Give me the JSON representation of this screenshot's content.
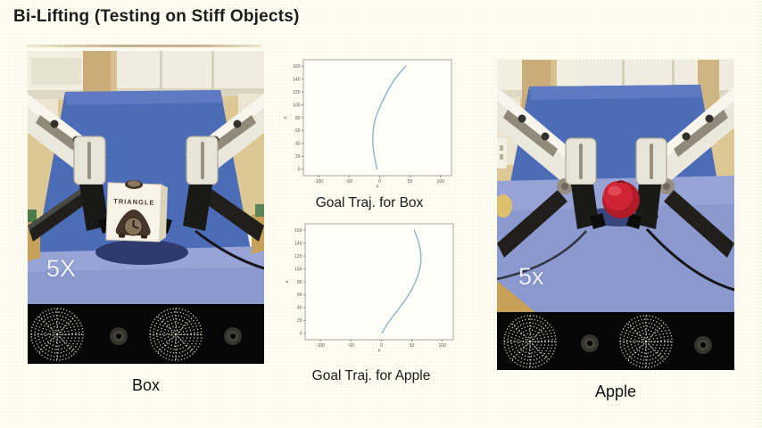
{
  "title": "Bi-Lifting (Testing on Stiff Objects)",
  "left_panel": {
    "speed_label": "5X",
    "object_label": "TRIANGLE",
    "caption": "Box"
  },
  "right_panel": {
    "speed_label": "5x",
    "caption": "Apple"
  },
  "chart_data": [
    {
      "type": "line",
      "title": "Goal Traj. for Box",
      "xlabel": "x",
      "ylabel": "z",
      "xlim": [
        -125,
        118
      ],
      "ylim": [
        -10,
        170
      ],
      "xticks": [
        -100,
        -50,
        0,
        50,
        100
      ],
      "yticks": [
        0,
        20,
        40,
        60,
        80,
        100,
        120,
        140,
        160
      ],
      "grid": false,
      "legend": "none",
      "line_color": "#86b6c9",
      "x": [
        -4,
        -6.5,
        -8.5,
        -10,
        -11,
        -11.2,
        -10.5,
        -9,
        -6.5,
        -2.5,
        2,
        7,
        12.5,
        18.5,
        25,
        33.5,
        43
      ],
      "y": [
        0,
        10,
        20,
        30,
        40,
        50,
        60,
        70,
        80,
        90,
        100,
        110,
        120,
        130,
        140,
        150,
        160
      ]
    },
    {
      "type": "line",
      "title": "Goal Traj. for Apple",
      "xlabel": "x",
      "ylabel": "z",
      "xlim": [
        -125,
        118
      ],
      "ylim": [
        -10,
        170
      ],
      "xticks": [
        -100,
        -50,
        0,
        50,
        100
      ],
      "yticks": [
        0,
        20,
        40,
        60,
        80,
        100,
        120,
        140,
        160
      ],
      "grid": false,
      "legend": "none",
      "line_color": "#86b6c9",
      "x": [
        1,
        7,
        14,
        22,
        30,
        38,
        45,
        51,
        56,
        60,
        63,
        64.8,
        65,
        64,
        61.5,
        58,
        54
      ],
      "y": [
        0,
        10,
        20,
        30,
        40,
        50,
        60,
        70,
        80,
        90,
        100,
        110,
        120,
        130,
        140,
        150,
        160
      ]
    }
  ],
  "colors": {
    "slide_background": "#fefef9",
    "curve": "#86b6c9",
    "board_blue": "#4d6cb7",
    "table_blue": "#8b99ce",
    "apple_red": "#c3202e",
    "sensor_strip": "#060606",
    "sensor_dots": "#d8d8c6"
  }
}
